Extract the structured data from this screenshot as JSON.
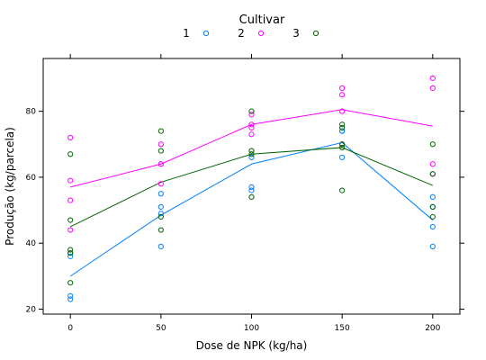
{
  "chart_data": {
    "type": "scatter",
    "title": "",
    "xlabel": "Dose de NPK (kg/ha)",
    "ylabel": "Produção (kg/parcela)",
    "xlim": [
      -15,
      215
    ],
    "ylim": [
      18.5,
      96
    ],
    "x_ticks": [
      0,
      50,
      100,
      150,
      200
    ],
    "y_ticks": [
      20,
      40,
      60,
      80
    ],
    "grid": false,
    "legend": {
      "title": "Cultivar",
      "placement": "top-center",
      "symbol": "o"
    },
    "series": [
      {
        "name": "1",
        "color": "#0080ff",
        "points": [
          [
            0,
            37
          ],
          [
            0,
            36
          ],
          [
            0,
            24
          ],
          [
            0,
            23
          ],
          [
            50,
            55
          ],
          [
            50,
            51
          ],
          [
            50,
            49
          ],
          [
            50,
            39
          ],
          [
            100,
            66
          ],
          [
            100,
            57
          ],
          [
            100,
            56
          ],
          [
            150,
            74
          ],
          [
            150,
            74
          ],
          [
            150,
            66
          ],
          [
            200,
            54
          ],
          [
            200,
            51
          ],
          [
            200,
            45
          ],
          [
            200,
            39
          ]
        ],
        "line": [
          [
            0,
            30
          ],
          [
            50,
            48.5
          ],
          [
            100,
            64
          ],
          [
            150,
            70.5
          ],
          [
            200,
            47
          ]
        ]
      },
      {
        "name": "2",
        "color": "#ff00ff",
        "points": [
          [
            0,
            72
          ],
          [
            0,
            59
          ],
          [
            0,
            53
          ],
          [
            0,
            44
          ],
          [
            50,
            70
          ],
          [
            50,
            64
          ],
          [
            50,
            64
          ],
          [
            50,
            58
          ],
          [
            100,
            79
          ],
          [
            100,
            76
          ],
          [
            100,
            75
          ],
          [
            100,
            73
          ],
          [
            150,
            87
          ],
          [
            150,
            85
          ],
          [
            150,
            80
          ],
          [
            150,
            70
          ],
          [
            200,
            90
          ],
          [
            200,
            87
          ],
          [
            200,
            64
          ],
          [
            200,
            61
          ]
        ],
        "line": [
          [
            0,
            57
          ],
          [
            50,
            64
          ],
          [
            100,
            76
          ],
          [
            150,
            80.5
          ],
          [
            200,
            75.5
          ]
        ]
      },
      {
        "name": "3",
        "color": "#006400",
        "points": [
          [
            0,
            67
          ],
          [
            0,
            47
          ],
          [
            0,
            38
          ],
          [
            0,
            37
          ],
          [
            0,
            28
          ],
          [
            50,
            74
          ],
          [
            50,
            68
          ],
          [
            50,
            48
          ],
          [
            50,
            44
          ],
          [
            100,
            80
          ],
          [
            100,
            68
          ],
          [
            100,
            67
          ],
          [
            100,
            54
          ],
          [
            150,
            76
          ],
          [
            150,
            75
          ],
          [
            150,
            70
          ],
          [
            150,
            69
          ],
          [
            150,
            56
          ],
          [
            200,
            70
          ],
          [
            200,
            61
          ],
          [
            200,
            51
          ],
          [
            200,
            48
          ]
        ],
        "line": [
          [
            0,
            45
          ],
          [
            50,
            58.5
          ],
          [
            100,
            67
          ],
          [
            150,
            69
          ],
          [
            200,
            57.5
          ]
        ]
      }
    ]
  }
}
